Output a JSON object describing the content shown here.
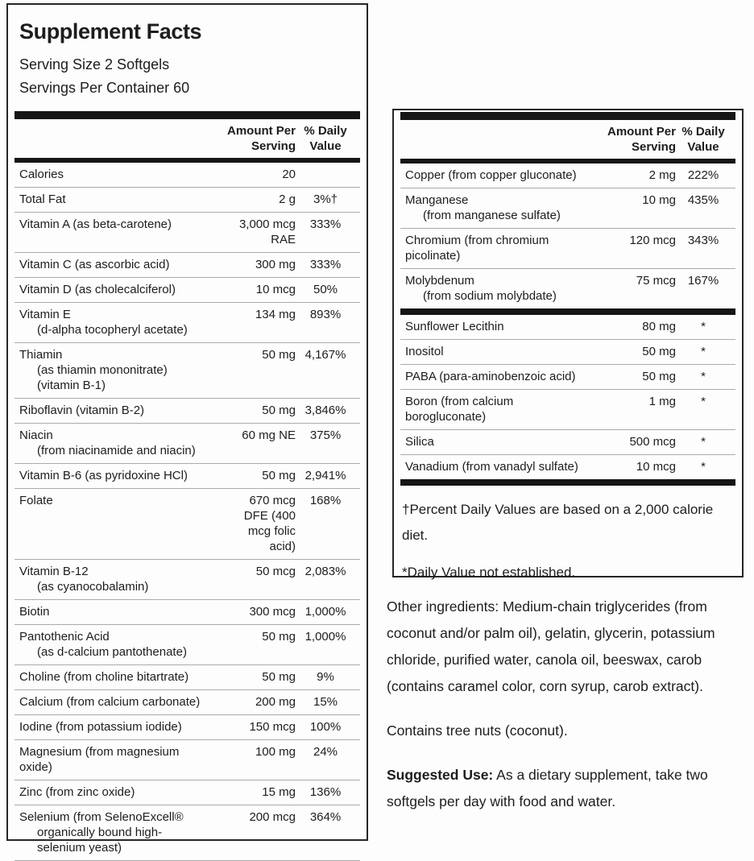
{
  "supplement_facts": {
    "title": "Supplement Facts",
    "serving_size": "Serving Size 2 Softgels",
    "servings_per_container": "Servings Per Container 60"
  },
  "headers": {
    "amount": "Amount Per\nServing",
    "daily_value": "% Daily\nValue"
  },
  "left_rows": [
    {
      "name": "Calories",
      "amount": "20",
      "dv": ""
    },
    {
      "name": "Total Fat",
      "amount": "2 g",
      "dv": "3%†"
    },
    {
      "name": "Vitamin A (as beta-carotene)",
      "amount": "3,000 mcg\nRAE",
      "dv": "333%"
    },
    {
      "name": "Vitamin C (as ascorbic acid)",
      "amount": "300 mg",
      "dv": "333%"
    },
    {
      "name": "Vitamin D (as cholecalciferol)",
      "amount": "10 mcg",
      "dv": "50%"
    },
    {
      "name": "Vitamin E",
      "sub": "(d-alpha tocopheryl acetate)",
      "amount": "134 mg",
      "dv": "893%"
    },
    {
      "name": "Thiamin",
      "sub": "(as thiamin mononitrate) (vitamin B-1)",
      "amount": "50 mg",
      "dv": "4,167%"
    },
    {
      "name": "Riboflavin (vitamin B-2)",
      "amount": "50 mg",
      "dv": "3,846%"
    },
    {
      "name": "Niacin",
      "sub": "(from niacinamide and niacin)",
      "amount": "60 mg NE",
      "dv": "375%"
    },
    {
      "name": "Vitamin B-6 (as pyridoxine HCl)",
      "amount": "50 mg",
      "dv": "2,941%"
    },
    {
      "name": "Folate",
      "amount": "670 mcg\nDFE (400\nmcg folic\nacid)",
      "dv": "168%"
    },
    {
      "name": "Vitamin B-12",
      "sub": "(as cyanocobalamin)",
      "amount": "50 mcg",
      "dv": "2,083%"
    },
    {
      "name": "Biotin",
      "amount": "300 mcg",
      "dv": "1,000%"
    },
    {
      "name": "Pantothenic Acid",
      "sub": "(as d-calcium pantothenate)",
      "amount": "50 mg",
      "dv": "1,000%"
    },
    {
      "name": "Choline (from choline bitartrate)",
      "amount": "50 mg",
      "dv": "9%"
    },
    {
      "name": "Calcium (from calcium carbonate)",
      "amount": "200 mg",
      "dv": "15%"
    },
    {
      "name": "Iodine (from potassium iodide)",
      "amount": "150 mcg",
      "dv": "100%"
    },
    {
      "name": "Magnesium (from magnesium oxide)",
      "amount": "100 mg",
      "dv": "24%"
    },
    {
      "name": "Zinc (from zinc oxide)",
      "amount": "15 mg",
      "dv": "136%"
    },
    {
      "name": "Selenium (from SelenoExcell®",
      "sub": "organically bound high-selenium yeast)",
      "amount": "200 mcg",
      "dv": "364%"
    }
  ],
  "right_minerals_rows": [
    {
      "name": "Copper (from copper gluconate)",
      "amount": "2 mg",
      "dv": "222%"
    },
    {
      "name": "Manganese",
      "sub": "(from manganese sulfate)",
      "amount": "10 mg",
      "dv": "435%"
    },
    {
      "name": "Chromium (from chromium",
      "sub": "picolinate)",
      "sub_indent": false,
      "amount": "120 mcg",
      "dv": "343%"
    },
    {
      "name": "Molybdenum",
      "sub": "(from sodium molybdate)",
      "amount": "75 mcg",
      "dv": "167%"
    }
  ],
  "right_other_rows": [
    {
      "name": "Sunflower Lecithin",
      "amount": "80 mg",
      "dv": "*"
    },
    {
      "name": "Inositol",
      "amount": "50 mg",
      "dv": "*"
    },
    {
      "name": "PABA (para-aminobenzoic acid)",
      "amount": "50 mg",
      "dv": "*"
    },
    {
      "name": "Boron (from calcium borogluconate)",
      "amount": "1 mg",
      "dv": "*"
    },
    {
      "name": "Silica",
      "amount": "500 mcg",
      "dv": "*"
    },
    {
      "name": "Vanadium (from vanadyl sulfate)",
      "amount": "10 mcg",
      "dv": "*"
    }
  ],
  "footnotes": {
    "calorie_note": "†Percent Daily Values are based on a 2,000 calorie diet.",
    "dv_note": "*Daily Value not established."
  },
  "info": {
    "other_ingredients": "Other ingredients: Medium-chain triglycerides (from coconut and/or palm oil), gelatin, glycerin, potassium chloride, purified water, canola oil, beeswax, carob (contains caramel color, corn syrup, carob extract).",
    "allergen": "Contains tree nuts (coconut).",
    "suggested_use_label": "Suggested Use:",
    "suggested_use_text": "As a dietary supplement, take two softgels per day with food and water."
  },
  "colors": {
    "text": "#1d1d1d",
    "rule": "#161616",
    "separator": "#ababab",
    "background": "#fdfdfd"
  }
}
